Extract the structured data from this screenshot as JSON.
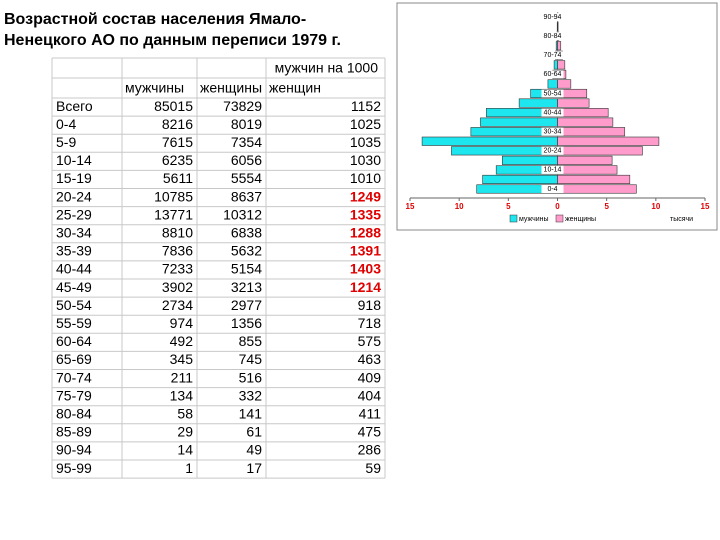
{
  "title": [
    "Возрастной состав населения Ямало-",
    "Ненецкого АО по данным переписи 1979 г."
  ],
  "table": {
    "header": {
      "men": "мужчины",
      "women": "женщины",
      "ratio_line1": "мужчин на 1000",
      "ratio_line2": "женщин"
    },
    "highlight_color": "#e00000",
    "rows": [
      [
        "Всего",
        85015,
        73829,
        1152
      ],
      [
        "0-4",
        8216,
        8019,
        1025
      ],
      [
        "5-9",
        7615,
        7354,
        1035
      ],
      [
        "10-14",
        6235,
        6056,
        1030
      ],
      [
        "15-19",
        5611,
        5554,
        1010
      ],
      [
        "20-24",
        10785,
        8637,
        1249
      ],
      [
        "25-29",
        13771,
        10312,
        1335
      ],
      [
        "30-34",
        8810,
        6838,
        1288
      ],
      [
        "35-39",
        7836,
        5632,
        1391
      ],
      [
        "40-44",
        7233,
        5154,
        1403
      ],
      [
        "45-49",
        3902,
        3213,
        1214
      ],
      [
        "50-54",
        2734,
        2977,
        918
      ],
      [
        "55-59",
        974,
        1356,
        718
      ],
      [
        "60-64",
        492,
        855,
        575
      ],
      [
        "65-69",
        345,
        745,
        463
      ],
      [
        "70-74",
        211,
        516,
        409
      ],
      [
        "75-79",
        134,
        332,
        404
      ],
      [
        "80-84",
        58,
        141,
        411
      ],
      [
        "85-89",
        29,
        61,
        475
      ],
      [
        "90-94",
        14,
        49,
        286
      ],
      [
        "95-99",
        1,
        17,
        59
      ]
    ],
    "highlighted": [
      false,
      false,
      false,
      false,
      false,
      true,
      true,
      true,
      true,
      true,
      true,
      false,
      false,
      false,
      false,
      false,
      false,
      false,
      false,
      false,
      false
    ]
  },
  "chart_data": {
    "type": "pyramid",
    "categories": [
      "0-4",
      null,
      "10-14",
      null,
      "20-24",
      null,
      "30-34",
      null,
      "40-44",
      null,
      "50-54",
      null,
      "60-64",
      null,
      "70-74",
      null,
      "80-84",
      null,
      "90-94"
    ],
    "series": [
      {
        "name": "мужчины",
        "color": "#1ee6ee",
        "values": [
          -8.216,
          -7.615,
          -6.235,
          -5.611,
          -10.785,
          -13.771,
          -8.81,
          -7.836,
          -7.233,
          -3.902,
          -2.734,
          -0.974,
          -0.492,
          -0.345,
          -0.211,
          -0.134,
          -0.058,
          -0.029,
          -0.014
        ]
      },
      {
        "name": "женщины",
        "color": "#ff9ccc",
        "values": [
          8.019,
          7.354,
          6.056,
          5.554,
          8.637,
          10.312,
          6.838,
          5.632,
          5.154,
          3.213,
          2.977,
          1.356,
          0.855,
          0.745,
          0.516,
          0.332,
          0.141,
          0.061,
          0.049
        ]
      }
    ],
    "xlim": [
      -15,
      15
    ],
    "xticks": [
      {
        "value": -15,
        "label": "15"
      },
      {
        "value": -10,
        "label": "10"
      },
      {
        "value": -5,
        "label": "5"
      },
      0,
      5,
      10,
      15
    ],
    "x_label": "тысячи",
    "tick_color": "#e00000"
  }
}
